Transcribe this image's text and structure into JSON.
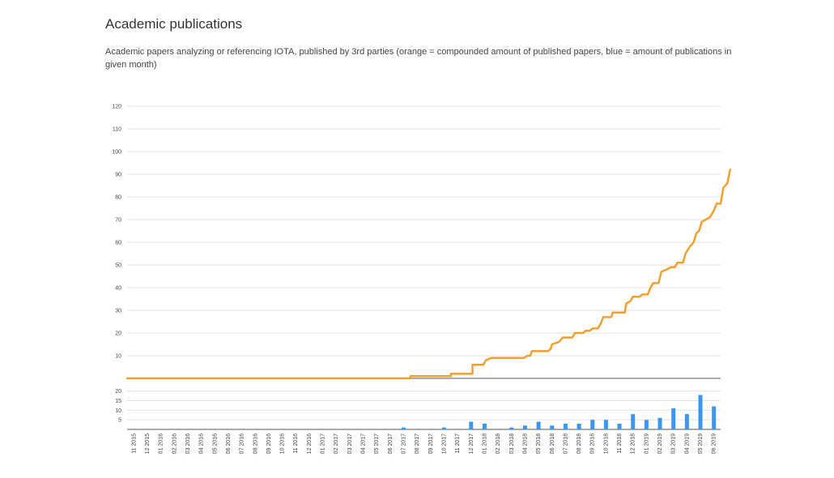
{
  "page": {
    "title": "Academic publications",
    "subtitle": "Academic papers analyzing or referencing IOTA, published by 3rd parties (orange = compounded amount of published papers, blue = amount of publications in given month)"
  },
  "chart_data": [
    {
      "type": "line",
      "name": "compounded",
      "color": "#f0a030",
      "ylim": [
        0,
        120
      ],
      "yticks": [
        10,
        20,
        30,
        40,
        50,
        60,
        70,
        80,
        90,
        100,
        110,
        120
      ],
      "grid": true,
      "points": [
        [
          0,
          0
        ],
        [
          21,
          0
        ],
        [
          21,
          1
        ],
        [
          24,
          1
        ],
        [
          24,
          2
        ],
        [
          25.6,
          2
        ],
        [
          25.6,
          6
        ],
        [
          26.4,
          6
        ],
        [
          26.6,
          8
        ],
        [
          27,
          9
        ],
        [
          29.4,
          9
        ],
        [
          29.7,
          10
        ],
        [
          29.9,
          10
        ],
        [
          30,
          12
        ],
        [
          31.2,
          12
        ],
        [
          31.4,
          13
        ],
        [
          31.5,
          15
        ],
        [
          32,
          16
        ],
        [
          32.3,
          18
        ],
        [
          33,
          18
        ],
        [
          33.2,
          20
        ],
        [
          33.8,
          20
        ],
        [
          34,
          21
        ],
        [
          34.3,
          21
        ],
        [
          34.5,
          22
        ],
        [
          34.9,
          22
        ],
        [
          35.1,
          24
        ],
        [
          35.3,
          27
        ],
        [
          35.9,
          27
        ],
        [
          36,
          29
        ],
        [
          36.9,
          29
        ],
        [
          37,
          33
        ],
        [
          37.3,
          34
        ],
        [
          37.5,
          36
        ],
        [
          38,
          36
        ],
        [
          38.2,
          37
        ],
        [
          38.6,
          37
        ],
        [
          38.8,
          40
        ],
        [
          39,
          42
        ],
        [
          39.4,
          42
        ],
        [
          39.6,
          47
        ],
        [
          40,
          48
        ],
        [
          40.3,
          49
        ],
        [
          40.6,
          49
        ],
        [
          40.8,
          51
        ],
        [
          41.2,
          51
        ],
        [
          41.4,
          55
        ],
        [
          41.7,
          58
        ],
        [
          42,
          60
        ],
        [
          42.2,
          64
        ],
        [
          42.4,
          65
        ],
        [
          42.6,
          69
        ],
        [
          42.9,
          70
        ],
        [
          43.2,
          71
        ],
        [
          43.5,
          74
        ],
        [
          43.7,
          77
        ],
        [
          44,
          77
        ],
        [
          44.2,
          84
        ],
        [
          44.5,
          86
        ],
        [
          44.7,
          92
        ]
      ]
    },
    {
      "type": "bar",
      "name": "monthly",
      "color": "#3c96f0",
      "ylim": [
        0,
        22
      ],
      "yticks": [
        5,
        10,
        15,
        20
      ],
      "categories": [
        "11 2015",
        "12 2015",
        "01 2016",
        "02 2016",
        "03 2016",
        "04 2016",
        "05 2016",
        "06 2016",
        "07 2016",
        "08 2016",
        "09 2016",
        "10 2016",
        "11 2016",
        "12 2016",
        "01 2017",
        "02 2017",
        "03 2017",
        "04 2017",
        "05 2017",
        "06 2017",
        "07 2017",
        "08 2017",
        "09 2017",
        "10 2017",
        "11 2017",
        "12 2017",
        "01 2018",
        "02 2018",
        "03 2018",
        "04 2018",
        "05 2018",
        "06 2018",
        "07 2018",
        "08 2018",
        "09 2018",
        "10 2018",
        "11 2018",
        "12 2018",
        "01 2019",
        "02 2019",
        "03 2019",
        "04 2019",
        "05 2019",
        "06 2019"
      ],
      "values": [
        0,
        0,
        0,
        0,
        0,
        0,
        0,
        0,
        0,
        0,
        0,
        0,
        0,
        0,
        0,
        0,
        0,
        0,
        0,
        0,
        1,
        0,
        0,
        1,
        0,
        4,
        3,
        0,
        1,
        2,
        4,
        2,
        3,
        3,
        5,
        5,
        3,
        8,
        5,
        6,
        11,
        8,
        18,
        12
      ]
    }
  ]
}
